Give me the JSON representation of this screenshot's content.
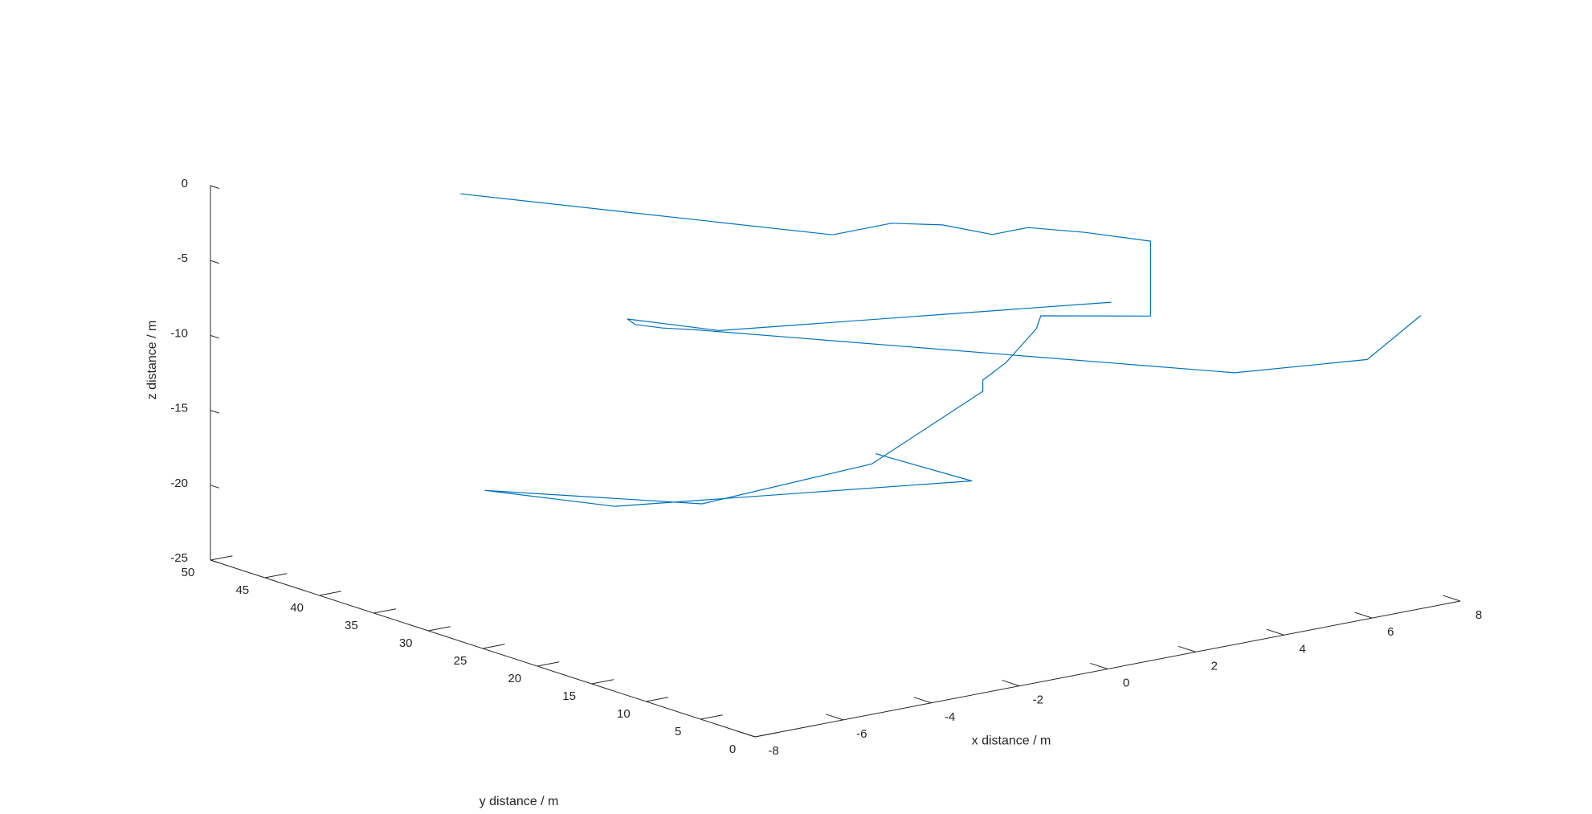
{
  "chart_data": {
    "type": "line",
    "projection": "3d",
    "title": "",
    "xlabel": "x distance / m",
    "ylabel": "y distance / m",
    "zlabel": "z distance / m",
    "xlim": [
      -8,
      8
    ],
    "ylim": [
      0,
      50
    ],
    "zlim": [
      -25,
      0
    ],
    "xticks": [
      "-8",
      "-6",
      "-4",
      "-2",
      "0",
      "2",
      "4",
      "6",
      "8"
    ],
    "yticks": [
      "0",
      "5",
      "10",
      "15",
      "20",
      "25",
      "30",
      "35",
      "40",
      "45",
      "50"
    ],
    "zticks": [
      "-25",
      "-20",
      "-15",
      "-10",
      "-5",
      "0"
    ],
    "grid": false,
    "legend": "none",
    "series": [
      {
        "color": "#0072BD",
        "points": [
          [
            -4.8,
            40.0,
            0.0
          ],
          [
            -1.3,
            20.0,
            0.0
          ],
          [
            0.05,
            20.05,
            0.0
          ],
          [
            0.7,
            18.0,
            0.0
          ],
          [
            0.99,
            14.6,
            0.0
          ],
          [
            1.8,
            14.6,
            0.0
          ],
          [
            2.4,
            11.8,
            0.0
          ],
          [
            2.95,
            8.0,
            0.0
          ],
          [
            2.95,
            8.0,
            -5.0
          ],
          [
            1.4,
            11.8,
            -5.0
          ],
          [
            1.3,
            11.8,
            -5.8
          ],
          [
            0.8,
            12.6,
            -8.0
          ],
          [
            0.38,
            13.0,
            -9.0
          ],
          [
            0.38,
            13.0,
            -9.75
          ],
          [
            -0.9,
            18.0,
            -15.05
          ],
          [
            -3.0,
            25.1,
            -18.2
          ],
          [
            -5.5,
            34.9,
            -18.2
          ],
          [
            -3.5,
            31.1,
            -19.5
          ],
          [
            2.7,
            23.4,
            -19.5
          ],
          [
            2.0,
            29.4,
            -18.7
          ]
        ]
      },
      {
        "color": "#0072BD",
        "points": [
          [
            3.0,
            11.8,
            -5.0
          ],
          [
            -1.2,
            30.8,
            -9.0
          ],
          [
            -2.0,
            36.0,
            -9.0
          ],
          [
            -1.8,
            36.1,
            -9.5
          ],
          [
            -1.5,
            34.8,
            -9.6
          ],
          [
            -0.9,
            34.1,
            -9.9
          ],
          [
            4.88,
            8.1,
            -9.9
          ],
          [
            7.35,
            5.9,
            -9.9
          ],
          [
            7.35,
            1.0,
            -5.8
          ]
        ]
      }
    ]
  }
}
